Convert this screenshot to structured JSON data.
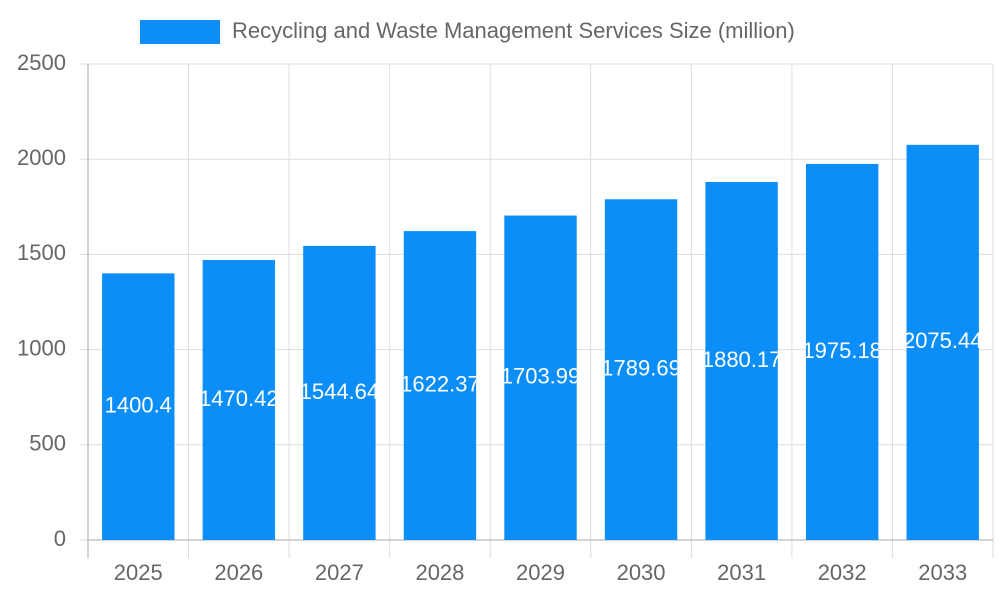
{
  "chart_data": {
    "type": "bar",
    "categories": [
      "2025",
      "2026",
      "2027",
      "2028",
      "2029",
      "2030",
      "2031",
      "2032",
      "2033"
    ],
    "series": [
      {
        "name": "Recycling and Waste Management Services Size (million)",
        "color": "#0b8ef8",
        "values": [
          1400.4,
          1470.42,
          1544.64,
          1622.37,
          1703.99,
          1789.69,
          1880.17,
          1975.18,
          2075.44
        ]
      }
    ],
    "ylim": [
      0,
      2500
    ],
    "yticks": [
      0,
      500,
      1000,
      1500,
      2000,
      2500
    ],
    "grid": true,
    "legend": "top"
  }
}
